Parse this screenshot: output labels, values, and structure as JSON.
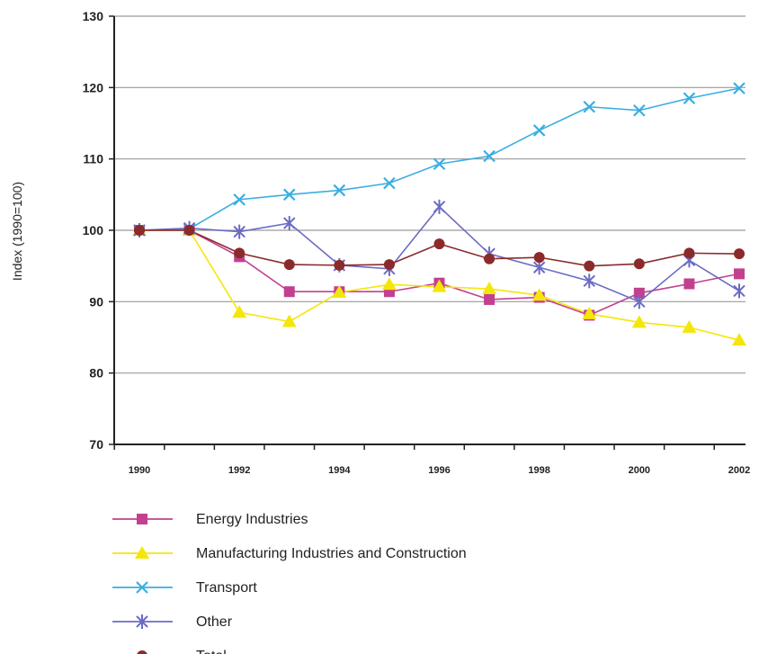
{
  "chart_data": {
    "type": "line",
    "title": "",
    "xlabel": "",
    "ylabel": "Index (1990=100)",
    "x": [
      1990,
      1991,
      1992,
      1993,
      1994,
      1995,
      1996,
      1997,
      1998,
      1999,
      2000,
      2001,
      2002
    ],
    "x_tick_labels": [
      "1990",
      "1992",
      "1994",
      "1996",
      "1998",
      "2000",
      "2002"
    ],
    "y_ticks": [
      "70",
      "80",
      "90",
      "100",
      "110",
      "120",
      "130"
    ],
    "ylim": [
      70,
      130
    ],
    "grid": "horizontal",
    "legend_position": "bottom",
    "series": [
      {
        "name": "Energy Industries",
        "color": "#c2408f",
        "marker": "square",
        "values": [
          100,
          100,
          96.3,
          91.4,
          91.4,
          91.4,
          92.6,
          90.3,
          90.6,
          88.1,
          91.2,
          92.5,
          93.9
        ]
      },
      {
        "name": "Manufacturing Industries and Construction",
        "color": "#f5e60a",
        "marker": "triangle",
        "values": [
          100,
          100,
          88.5,
          87.2,
          91.3,
          92.4,
          92.1,
          91.8,
          90.9,
          88.3,
          87.1,
          86.4,
          84.6
        ]
      },
      {
        "name": "Transport",
        "color": "#3aaee0",
        "marker": "x",
        "values": [
          100,
          100.2,
          104.3,
          105,
          105.6,
          106.6,
          109.3,
          110.4,
          114,
          117.3,
          116.8,
          118.5,
          119.9
        ]
      },
      {
        "name": "Other",
        "color": "#6b6bc4",
        "marker": "star",
        "values": [
          100,
          100.3,
          99.8,
          101,
          95.1,
          94.6,
          103.3,
          96.7,
          94.8,
          92.9,
          90,
          95.8,
          91.5
        ]
      },
      {
        "name": "Total",
        "color": "#8b2a2a",
        "marker": "circle",
        "values": [
          100,
          100,
          96.8,
          95.2,
          95.1,
          95.2,
          98.1,
          96,
          96.2,
          95,
          95.3,
          96.8,
          96.7
        ]
      }
    ]
  }
}
